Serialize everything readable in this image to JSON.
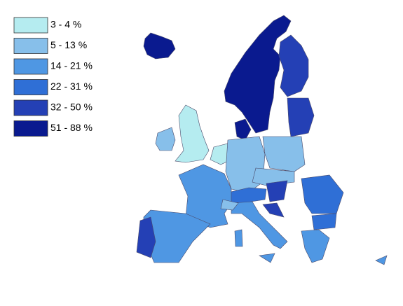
{
  "legend": [
    {
      "label": "3 - 4 %",
      "color": "#b5ecf0"
    },
    {
      "label": "5 - 13 %",
      "color": "#87bfea"
    },
    {
      "label": "14 - 21 %",
      "color": "#4f97e3"
    },
    {
      "label": "22 - 31 %",
      "color": "#2f6fd6"
    },
    {
      "label": "32 - 50 %",
      "color": "#2440b5"
    },
    {
      "label": "51 - 88 %",
      "color": "#0a1a8f"
    }
  ]
}
